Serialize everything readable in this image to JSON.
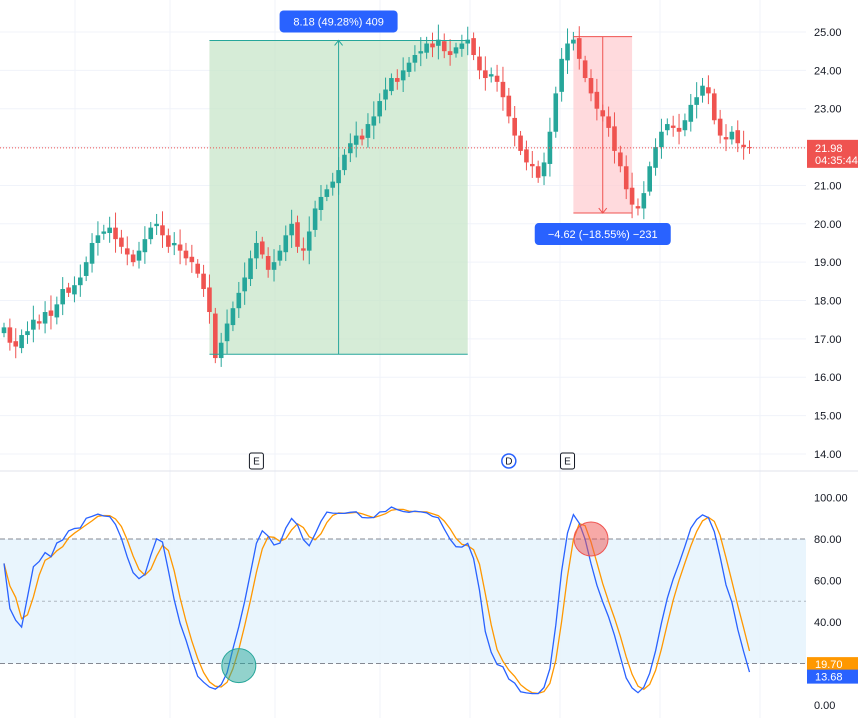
{
  "colors": {
    "up": "#26a69a",
    "down": "#ef5350",
    "k_line": "#2962ff",
    "d_line": "#ff9800",
    "badge_blue": "#2962ff",
    "range_up_fill": "#c8e6c9",
    "range_down_fill": "#ffcdd2",
    "band_fill": "#e3f2fd"
  },
  "chart_data": [
    {
      "type": "candlestick",
      "y_axis_ticks": [
        "14.00",
        "15.00",
        "16.00",
        "17.00",
        "18.00",
        "19.00",
        "20.00",
        "21.00",
        "22.00",
        "23.00",
        "24.00",
        "25.00"
      ],
      "ylim": [
        13.75,
        25.4
      ],
      "last_price": {
        "value": "21.98",
        "countdown": "04:35:44"
      },
      "measures": [
        {
          "label": "8.18 (49.28%) 409",
          "from_bar": 35,
          "to_bar": 79,
          "low": 16.6,
          "high": 24.78,
          "direction": "up"
        },
        {
          "label": "−4.62 (−18.55%) −231",
          "from_bar": 97,
          "to_bar": 107,
          "low": 20.28,
          "high": 24.88,
          "direction": "down"
        }
      ],
      "event_markers": [
        {
          "bar": 43,
          "label": "E"
        },
        {
          "bar": 86,
          "label": "D"
        },
        {
          "bar": 96,
          "label": "E"
        }
      ],
      "closes": [
        17.3,
        16.9,
        16.8,
        17.1,
        17.2,
        17.5,
        17.4,
        17.7,
        17.6,
        17.9,
        18.3,
        18.2,
        18.4,
        18.6,
        19.0,
        19.5,
        19.7,
        19.8,
        19.9,
        19.6,
        19.4,
        19.2,
        19.0,
        19.3,
        19.6,
        19.9,
        20.0,
        19.7,
        19.4,
        19.5,
        19.3,
        19.1,
        19.0,
        18.7,
        18.3,
        17.7,
        16.5,
        16.9,
        17.4,
        17.8,
        18.2,
        18.6,
        19.1,
        19.5,
        19.2,
        18.8,
        19.0,
        19.3,
        19.7,
        20.0,
        19.4,
        19.3,
        19.8,
        20.4,
        20.7,
        20.9,
        21.1,
        21.4,
        21.8,
        22.1,
        22.3,
        22.2,
        22.6,
        22.8,
        23.2,
        23.5,
        23.8,
        23.7,
        24.0,
        24.2,
        24.4,
        24.5,
        24.7,
        24.6,
        24.8,
        24.5,
        24.4,
        24.6,
        24.7,
        24.8,
        24.4,
        24.0,
        23.8,
        23.9,
        23.7,
        23.3,
        22.8,
        22.3,
        21.9,
        21.6,
        21.5,
        21.2,
        21.6,
        22.4,
        23.4,
        24.3,
        24.7,
        24.8,
        24.3,
        23.8,
        23.4,
        23.0,
        22.8,
        22.5,
        21.9,
        21.5,
        20.9,
        20.5,
        20.4,
        20.8,
        21.5,
        22.0,
        22.4,
        22.6,
        22.5,
        22.4,
        22.7,
        23.1,
        23.3,
        23.6,
        23.4,
        22.7,
        22.3,
        22.2,
        22.4,
        22.1,
        22.0,
        21.98
      ],
      "stochastic": {
        "k_axis_ticks": [
          "0.00",
          "20.00",
          "40.00",
          "60.00",
          "80.00",
          "100.00"
        ],
        "k_last": "13.68",
        "d_last": "19.70",
        "upper_band": 80,
        "lower_band": 20,
        "middle": 50,
        "signals": [
          {
            "bar": 40,
            "type": "oversold",
            "value": 19
          },
          {
            "bar": 100,
            "type": "overbought",
            "value": 80
          }
        ]
      }
    }
  ]
}
